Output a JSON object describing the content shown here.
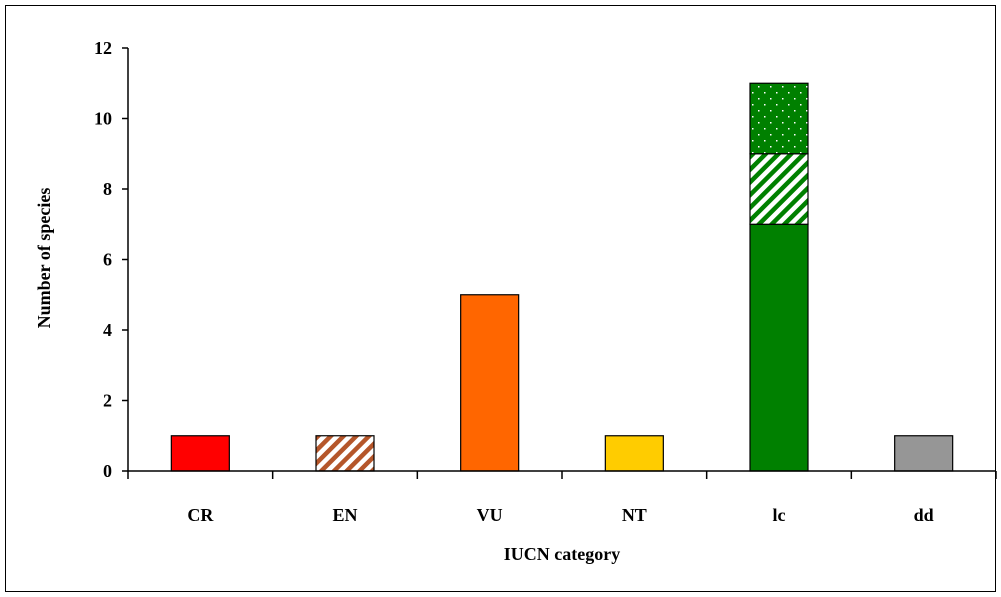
{
  "chart_data": {
    "type": "bar",
    "stacked": true,
    "title": "",
    "xlabel": "IUCN category",
    "ylabel": "Number of species",
    "categories": [
      "CR",
      "EN",
      "VU",
      "NT",
      "lc",
      "dd"
    ],
    "ylim": [
      0,
      12
    ],
    "yticks": [
      0,
      2,
      4,
      6,
      8,
      10,
      12
    ],
    "ytick_labels": [
      "0",
      "2",
      "4",
      "6",
      "8",
      "10",
      "12"
    ],
    "grid": false,
    "legend": "none",
    "segments": [
      {
        "category": "CR",
        "value": 1,
        "fill": "solid",
        "color": "#ff0000"
      },
      {
        "category": "EN",
        "value": 1,
        "fill": "hatched",
        "color": "#b5562a"
      },
      {
        "category": "VU",
        "value": 5,
        "fill": "solid",
        "color": "#ff6600"
      },
      {
        "category": "NT",
        "value": 1,
        "fill": "solid",
        "color": "#ffcc00"
      },
      {
        "category": "lc",
        "value": 7,
        "fill": "solid",
        "color": "#008000"
      },
      {
        "category": "lc",
        "value": 2,
        "fill": "hatched",
        "color": "#008000"
      },
      {
        "category": "lc",
        "value": 2,
        "fill": "dotted",
        "color": "#008000"
      },
      {
        "category": "dd",
        "value": 1,
        "fill": "solid",
        "color": "#969696"
      }
    ]
  }
}
